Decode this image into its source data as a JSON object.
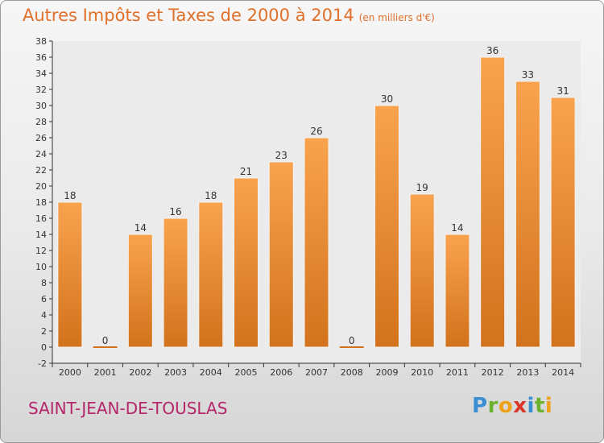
{
  "title": "Autres Impôts et Taxes de 2000 à 2014",
  "subtitle": "(en milliers d'€)",
  "commune": "SAINT-JEAN-DE-TOUSLAS",
  "logo": {
    "letters": [
      "P",
      "r",
      "o",
      "x",
      "i",
      "t",
      "i"
    ],
    "colors": [
      "#3a8fd4",
      "#6cb22e",
      "#f0a11a",
      "#d9372a",
      "#3a8fd4",
      "#6cb22e",
      "#f0a11a"
    ]
  },
  "colors": {
    "bar_top": "#f9a34f",
    "bar_bottom": "#d2721c",
    "title": "#e0702a",
    "commune": "#b5256a"
  },
  "chart_data": {
    "type": "bar",
    "categories": [
      "2000",
      "2001",
      "2002",
      "2003",
      "2004",
      "2005",
      "2006",
      "2007",
      "2008",
      "2009",
      "2010",
      "2011",
      "2012",
      "2013",
      "2014"
    ],
    "values": [
      18,
      0,
      14,
      16,
      18,
      21,
      23,
      26,
      0,
      30,
      19,
      14,
      36,
      33,
      31
    ],
    "yticks": [
      -2,
      0,
      2,
      4,
      6,
      8,
      10,
      12,
      14,
      16,
      18,
      20,
      22,
      24,
      26,
      28,
      30,
      32,
      34,
      36,
      38
    ],
    "ylim": [
      -2,
      38
    ],
    "grid": false,
    "data_labels": true
  }
}
